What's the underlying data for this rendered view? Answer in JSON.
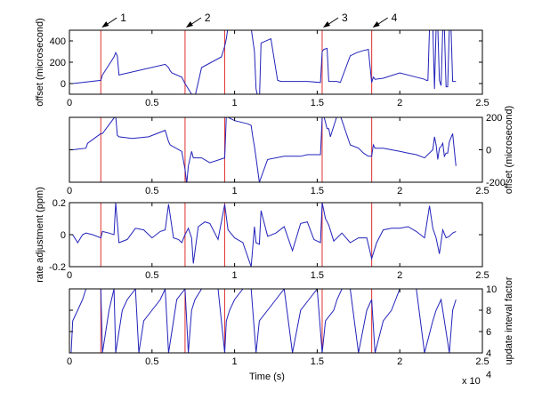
{
  "figure": {
    "xlabel": "Time (s)",
    "x_multiplier": "x 10",
    "x_multiplier_exp": "4",
    "annotations": [
      {
        "label": "1",
        "x": 0.19
      },
      {
        "label": "2",
        "x": 0.7
      },
      {
        "label": "3",
        "x": 1.53
      },
      {
        "label": "4",
        "x": 1.83
      }
    ],
    "event_lines_x": [
      0.19,
      0.7,
      0.94,
      1.53,
      1.83
    ]
  },
  "colors": {
    "trace": "#2222bb",
    "event": "#e03030",
    "axis": "#000000"
  },
  "chart_data": [
    {
      "type": "line",
      "ylabel": "offset (microsecond)",
      "ylabel_side": "left",
      "yticks_side": "left",
      "xlim": [
        0,
        2.5
      ],
      "ylim": [
        -100,
        500
      ],
      "yticks": [
        0,
        200,
        400
      ],
      "ytick_labels": [
        "0",
        "200",
        "400"
      ],
      "xticks": [
        0,
        0.5,
        1,
        1.5,
        2,
        2.5
      ],
      "xtick_labels": [
        "0",
        "0.5",
        "1",
        "1.5",
        "2",
        "2.5"
      ],
      "series": [
        {
          "x": [
            0.02,
            0.19,
            0.2,
            0.27,
            0.28,
            0.29,
            0.3,
            0.58,
            0.6,
            0.61,
            0.62,
            0.68,
            0.7,
            0.72,
            0.74,
            0.75,
            0.8,
            0.92,
            0.94,
            0.95,
            0.96,
            0.98,
            1.0,
            1.01,
            1.1,
            1.12,
            1.13,
            1.15,
            1.16,
            1.22,
            1.26,
            1.28,
            1.44,
            1.52,
            1.53,
            1.54,
            1.56,
            1.57,
            1.58,
            1.62,
            1.64,
            1.7,
            1.74,
            1.78,
            1.81,
            1.83,
            1.84,
            1.85,
            1.9,
            2.0,
            2.1,
            2.15,
            2.16,
            2.17,
            2.18,
            2.2,
            2.21,
            2.22,
            2.23,
            2.24,
            2.25,
            2.26,
            2.27,
            2.28,
            2.29,
            2.3,
            2.31,
            2.32,
            2.33,
            2.34
          ],
          "y": [
            0,
            30,
            80,
            250,
            290,
            260,
            80,
            180,
            150,
            120,
            100,
            60,
            0,
            -50,
            -100,
            -190,
            150,
            250,
            350,
            420,
            530,
            520,
            500,
            500,
            520,
            300,
            -50,
            -190,
            380,
            420,
            30,
            20,
            20,
            10,
            300,
            320,
            330,
            20,
            20,
            20,
            10,
            260,
            290,
            310,
            320,
            10,
            60,
            40,
            50,
            100,
            60,
            40,
            30,
            30,
            520,
            540,
            -50,
            520,
            530,
            30,
            -20,
            520,
            520,
            -30,
            -30,
            530,
            540,
            20,
            20,
            20
          ]
        }
      ]
    },
    {
      "type": "line",
      "ylabel": "offset (microsecond)",
      "ylabel_side": "right",
      "yticks_side": "right",
      "xlim": [
        0,
        2.5
      ],
      "ylim": [
        -200,
        200
      ],
      "yticks": [
        -200,
        0,
        200
      ],
      "ytick_labels": [
        "-200",
        "0",
        "200"
      ],
      "xticks": [
        0,
        0.5,
        1,
        1.5,
        2,
        2.5
      ],
      "xtick_labels": [
        "0",
        "0.5",
        "1",
        "1.5",
        "2",
        "2.5"
      ],
      "series": [
        {
          "x": [
            0.02,
            0.1,
            0.11,
            0.19,
            0.2,
            0.28,
            0.29,
            0.3,
            0.38,
            0.48,
            0.58,
            0.6,
            0.61,
            0.68,
            0.7,
            0.71,
            0.72,
            0.74,
            0.75,
            0.8,
            0.85,
            0.94,
            0.95,
            0.96,
            1.0,
            1.08,
            1.1,
            1.11,
            1.12,
            1.13,
            1.15,
            1.2,
            1.3,
            1.4,
            1.44,
            1.52,
            1.53,
            1.54,
            1.56,
            1.57,
            1.58,
            1.62,
            1.64,
            1.7,
            1.75,
            1.78,
            1.81,
            1.83,
            1.84,
            1.85,
            1.9,
            2.0,
            2.05,
            2.1,
            2.15,
            2.2,
            2.21,
            2.22,
            2.23,
            2.24,
            2.25,
            2.26,
            2.27,
            2.28,
            2.29,
            2.3,
            2.32,
            2.34
          ],
          "y": [
            0,
            10,
            40,
            100,
            100,
            210,
            90,
            80,
            70,
            80,
            120,
            50,
            30,
            -10,
            -120,
            -210,
            -100,
            -10,
            -50,
            -50,
            -80,
            -50,
            210,
            200,
            180,
            160,
            150,
            80,
            20,
            -50,
            -200,
            -60,
            -40,
            -40,
            -30,
            -30,
            200,
            210,
            130,
            130,
            80,
            210,
            210,
            30,
            10,
            -20,
            -40,
            -40,
            30,
            10,
            10,
            -10,
            -20,
            -30,
            -50,
            0,
            80,
            30,
            -60,
            10,
            20,
            40,
            -40,
            -20,
            -20,
            50,
            100,
            -100
          ]
        }
      ]
    },
    {
      "type": "line",
      "ylabel": "rate adjustment (ppm)",
      "ylabel_side": "left",
      "yticks_side": "left",
      "xlim": [
        0,
        2.5
      ],
      "ylim": [
        -0.2,
        0.2
      ],
      "yticks": [
        -0.2,
        0,
        0.2
      ],
      "ytick_labels": [
        "-0.2",
        "0",
        "0.2"
      ],
      "xticks": [
        0,
        0.5,
        1,
        1.5,
        2,
        2.5
      ],
      "xtick_labels": [
        "0",
        "0.5",
        "1",
        "1.5",
        "2",
        "2.5"
      ],
      "series": [
        {
          "x": [
            0.02,
            0.05,
            0.08,
            0.1,
            0.14,
            0.19,
            0.2,
            0.24,
            0.27,
            0.28,
            0.3,
            0.35,
            0.4,
            0.45,
            0.5,
            0.55,
            0.58,
            0.6,
            0.63,
            0.66,
            0.68,
            0.7,
            0.72,
            0.74,
            0.75,
            0.78,
            0.82,
            0.85,
            0.9,
            0.94,
            0.96,
            1.0,
            1.05,
            1.1,
            1.12,
            1.13,
            1.15,
            1.16,
            1.2,
            1.25,
            1.3,
            1.35,
            1.4,
            1.44,
            1.48,
            1.52,
            1.53,
            1.55,
            1.57,
            1.6,
            1.65,
            1.7,
            1.75,
            1.8,
            1.83,
            1.86,
            1.9,
            1.95,
            2.0,
            2.05,
            2.1,
            2.15,
            2.18,
            2.2,
            2.22,
            2.24,
            2.26,
            2.28,
            2.3,
            2.32,
            2.34
          ],
          "y": [
            0,
            -0.05,
            0,
            0.01,
            0,
            -0.02,
            0.02,
            0.01,
            0,
            0.2,
            -0.05,
            -0.03,
            0.04,
            0.03,
            -0.02,
            0.02,
            0.03,
            0.19,
            -0.02,
            -0.03,
            -0.05,
            0,
            0.04,
            -0.02,
            -0.18,
            0.05,
            0.08,
            0.07,
            -0.03,
            0.19,
            0.03,
            -0.02,
            -0.05,
            -0.2,
            0.05,
            -0.05,
            -0.06,
            0.15,
            -0.01,
            0.01,
            0.05,
            -0.1,
            0.07,
            0.08,
            -0.03,
            -0.05,
            0.2,
            0.1,
            0.06,
            -0.04,
            0.01,
            -0.05,
            -0.02,
            -0.02,
            -0.15,
            -0.05,
            0.03,
            0.04,
            0.04,
            0.05,
            0.02,
            -0.02,
            0.18,
            0.04,
            -0.02,
            -0.12,
            0.03,
            -0.02,
            -0.01,
            0.01,
            0.02
          ]
        }
      ]
    },
    {
      "type": "line",
      "ylabel": "update inteval factor",
      "ylabel_side": "right",
      "yticks_side": "right",
      "xlim": [
        0,
        2.5
      ],
      "ylim": [
        4,
        10
      ],
      "yticks": [
        4,
        6,
        8,
        10
      ],
      "ytick_labels": [
        "4",
        "6",
        "8",
        "10"
      ],
      "xticks": [
        0,
        0.5,
        1,
        1.5,
        2,
        2.5
      ],
      "xtick_labels": [
        "0",
        "0.5",
        "1",
        "1.5",
        "2",
        "2.5"
      ],
      "series": [
        {
          "x": [
            0.01,
            0.02,
            0.05,
            0.08,
            0.1,
            0.19,
            0.2,
            0.22,
            0.24,
            0.27,
            0.28,
            0.3,
            0.32,
            0.35,
            0.4,
            0.42,
            0.45,
            0.5,
            0.55,
            0.58,
            0.6,
            0.62,
            0.65,
            0.7,
            0.72,
            0.74,
            0.76,
            0.8,
            0.85,
            0.9,
            0.94,
            0.95,
            0.97,
            1.0,
            1.05,
            1.1,
            1.13,
            1.15,
            1.2,
            1.25,
            1.3,
            1.35,
            1.4,
            1.45,
            1.5,
            1.53,
            1.55,
            1.6,
            1.62,
            1.65,
            1.7,
            1.75,
            1.8,
            1.83,
            1.85,
            1.9,
            1.95,
            2.0,
            2.05,
            2.1,
            2.15,
            2.2,
            2.22,
            2.25,
            2.3,
            2.32,
            2.34
          ],
          "y": [
            4,
            7,
            8,
            9,
            10,
            10,
            4,
            6,
            8,
            10,
            4,
            6,
            8,
            9,
            10,
            4,
            7,
            8,
            9,
            10,
            4,
            6,
            9,
            10,
            4,
            8,
            9,
            10,
            10,
            10,
            4,
            7,
            8,
            9,
            10,
            10,
            4,
            7,
            8,
            9,
            10,
            4,
            8,
            9,
            10,
            4,
            7,
            8,
            9,
            10,
            10,
            4,
            8,
            9,
            4,
            7,
            8,
            10,
            10,
            10,
            4,
            7,
            8,
            9,
            4,
            8,
            9
          ]
        }
      ]
    }
  ]
}
